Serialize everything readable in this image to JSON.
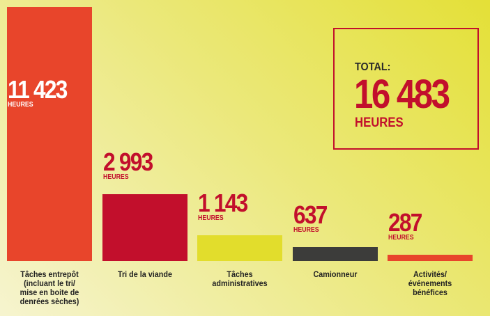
{
  "chart_data": {
    "type": "bar",
    "categories": [
      "Tâches entrepôt (incluant le tri/ mise en boite de denrées sèches)",
      "Tri de la viande",
      "Tâches administratives",
      "Camionneur",
      "Activités/ événements bénéfices"
    ],
    "values": [
      11423,
      2993,
      1143,
      637,
      287
    ],
    "value_labels": [
      "11 423",
      "2 993",
      "1 143",
      "637",
      "287"
    ],
    "unit": "HEURES",
    "colors": [
      "#e8452b",
      "#c20f2c",
      "#e2dd2c",
      "#3c3c3a",
      "#e8452b"
    ],
    "total": {
      "title": "TOTAL:",
      "value": 16483,
      "value_label": "16 483",
      "unit": "HEURES"
    }
  }
}
